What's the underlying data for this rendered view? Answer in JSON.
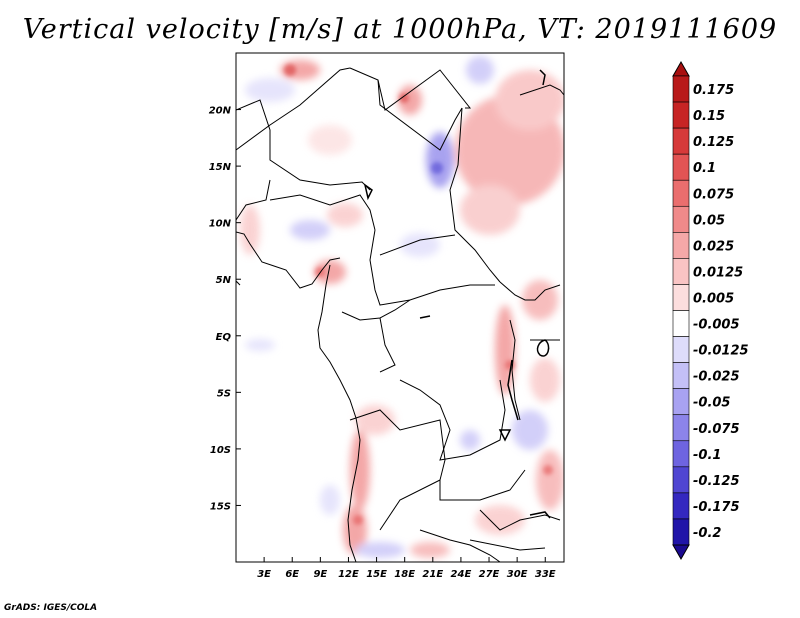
{
  "title": "Vertical velocity [m/s] at 1000hPa, VT: 2019111609",
  "footer": "GrADS: IGES/COLA",
  "map": {
    "lon_range": [
      0,
      35
    ],
    "lat_range": [
      -20,
      25
    ],
    "lon_ticks": [
      {
        "value": 3,
        "label": "3E"
      },
      {
        "value": 6,
        "label": "6E"
      },
      {
        "value": 9,
        "label": "9E"
      },
      {
        "value": 12,
        "label": "12E"
      },
      {
        "value": 15,
        "label": "15E"
      },
      {
        "value": 18,
        "label": "18E"
      },
      {
        "value": 21,
        "label": "21E"
      },
      {
        "value": 24,
        "label": "24E"
      },
      {
        "value": 27,
        "label": "27E"
      },
      {
        "value": 30,
        "label": "30E"
      },
      {
        "value": 33,
        "label": "33E"
      }
    ],
    "lat_ticks": [
      {
        "value": 20,
        "label": "20N"
      },
      {
        "value": 15,
        "label": "15N"
      },
      {
        "value": 10,
        "label": "10N"
      },
      {
        "value": 5,
        "label": "5N"
      },
      {
        "value": 0,
        "label": "EQ"
      },
      {
        "value": -5,
        "label": "5S"
      },
      {
        "value": -10,
        "label": "10S"
      },
      {
        "value": -15,
        "label": "15S"
      }
    ]
  },
  "colorbar": {
    "levels": [
      {
        "label": "0.175",
        "color": "#b81a1a"
      },
      {
        "label": "0.15",
        "color": "#c72424"
      },
      {
        "label": "0.125",
        "color": "#d63a3a"
      },
      {
        "label": "0.1",
        "color": "#e25454"
      },
      {
        "label": "0.075",
        "color": "#ea6e6e"
      },
      {
        "label": "0.05",
        "color": "#f08a8a"
      },
      {
        "label": "0.025",
        "color": "#f5a8a8"
      },
      {
        "label": "0.0125",
        "color": "#f9c4c4"
      },
      {
        "label": "0.005",
        "color": "#fcdede"
      },
      {
        "label": "-0.005",
        "color": "#ffffff"
      },
      {
        "label": "-0.0125",
        "color": "#dedcfb"
      },
      {
        "label": "-0.025",
        "color": "#c4c0f7"
      },
      {
        "label": "-0.05",
        "color": "#a8a2f1"
      },
      {
        "label": "-0.075",
        "color": "#8c84ea"
      },
      {
        "label": "-0.1",
        "color": "#6e64e0"
      },
      {
        "label": "-0.125",
        "color": "#5046d2"
      },
      {
        "label": "-0.175",
        "color": "#3428c0"
      },
      {
        "label": "-0.2",
        "color": "#2014a8"
      }
    ],
    "top_cap_color": "#a81010",
    "bottom_cap_color": "#1a0a90"
  }
}
